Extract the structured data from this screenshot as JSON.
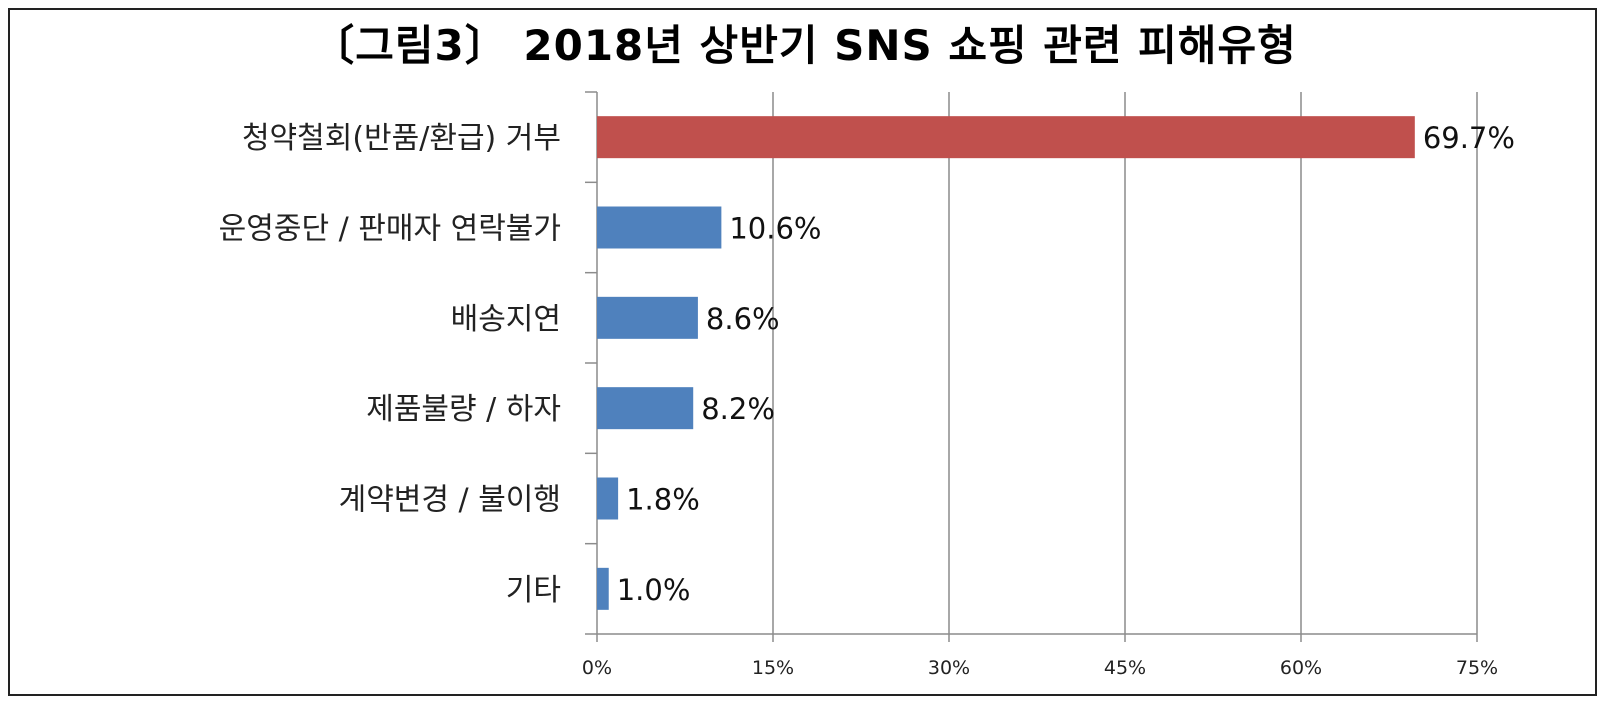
{
  "chart_data": {
    "type": "bar",
    "orientation": "horizontal",
    "title": "〔그림3〕 2018년 상반기 SNS 쇼핑 관련 피해유형",
    "categories": [
      "청약철회(반품/환급) 거부",
      "운영중단 / 판매자 연락불가",
      "배송지연",
      "제품불량 / 하자",
      "계약변경 / 불이행",
      "기타"
    ],
    "values": [
      69.7,
      10.6,
      8.6,
      8.2,
      1.8,
      1.0
    ],
    "value_labels": [
      "69.7%",
      "10.6%",
      "8.6%",
      "8.2%",
      "1.8%",
      "1.0%"
    ],
    "xlim": [
      0,
      75
    ],
    "ticks": [
      0,
      15,
      30,
      45,
      60,
      75
    ],
    "tick_labels": [
      "0%",
      "15%",
      "30%",
      "45%",
      "60%",
      "75%"
    ],
    "grid": true,
    "bar_colors": [
      "#c0504d",
      "#4f81bd",
      "#4f81bd",
      "#4f81bd",
      "#4f81bd",
      "#4f81bd"
    ]
  }
}
